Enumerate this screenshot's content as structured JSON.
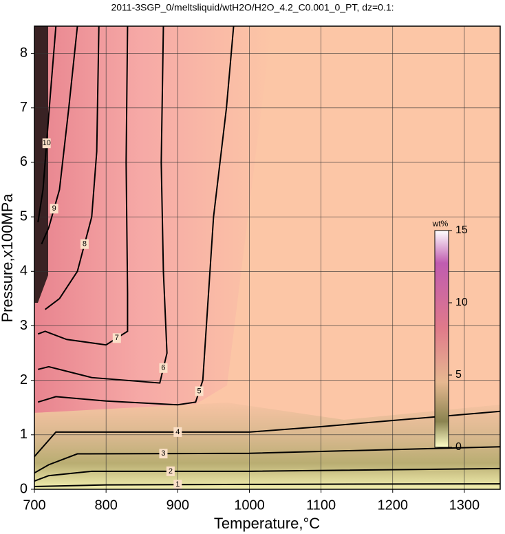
{
  "chart_data": {
    "type": "contour",
    "title": "2011-3SGP_0/meltsliquid/wtH2O/H2O_4.2_C0.001_0_PT, dz=0.1:",
    "x_label": "Temperature,°C",
    "y_label": "Pressure,x100MPa",
    "xlim": [
      700,
      1350
    ],
    "ylim": [
      0,
      8.5
    ],
    "xticks": [
      700,
      800,
      900,
      1000,
      1100,
      1200,
      1300
    ],
    "yticks": [
      0,
      1,
      2,
      3,
      4,
      5,
      6,
      7,
      8
    ],
    "grid": true,
    "colorbar": {
      "label": "wt%",
      "lim": [
        0,
        15
      ],
      "ticks": [
        0,
        5,
        10,
        15
      ]
    },
    "contours": [
      {
        "level": 1,
        "x": [
          700,
          800,
          1000,
          1350
        ],
        "y": [
          0.05,
          0.08,
          0.09,
          0.1
        ]
      },
      {
        "level": 2,
        "x": [
          700,
          720,
          780,
          1000,
          1350
        ],
        "y": [
          0.15,
          0.25,
          0.33,
          0.33,
          0.38
        ]
      },
      {
        "level": 3,
        "x": [
          700,
          720,
          760,
          1000,
          1350
        ],
        "y": [
          0.3,
          0.45,
          0.65,
          0.66,
          0.78
        ]
      },
      {
        "level": 4,
        "x": [
          700,
          730,
          800,
          1000,
          1100,
          1350
        ],
        "y": [
          0.6,
          1.05,
          1.05,
          1.05,
          1.15,
          1.43
        ]
      },
      {
        "level": 5,
        "x": [
          978,
          968,
          950,
          940,
          935,
          925,
          900,
          800,
          730,
          705
        ],
        "y": [
          8.5,
          7,
          5,
          3,
          2,
          1.6,
          1.55,
          1.62,
          1.7,
          1.6
        ]
      },
      {
        "level": 6,
        "x": [
          880,
          877,
          880,
          885,
          875,
          780,
          720,
          705
        ],
        "y": [
          8.5,
          6,
          4,
          2.5,
          1.95,
          2.05,
          2.25,
          2.2
        ]
      },
      {
        "level": 7,
        "x": [
          830,
          828,
          830,
          830,
          800,
          745,
          715,
          705
        ],
        "y": [
          8.5,
          6,
          3.6,
          2.9,
          2.65,
          2.75,
          2.9,
          2.85
        ]
      },
      {
        "level": 8,
        "x": [
          790,
          787,
          780,
          760,
          735,
          715
        ],
        "y": [
          8.5,
          6.2,
          5,
          4,
          3.5,
          3.3
        ]
      },
      {
        "level": 9,
        "x": [
          760,
          748,
          735,
          720,
          710
        ],
        "y": [
          8.5,
          7,
          5.5,
          4.8,
          4.5
        ]
      },
      {
        "level": 10,
        "x": [
          730,
          722,
          712,
          705
        ],
        "y": [
          8.5,
          7.2,
          5.5,
          4.9
        ]
      }
    ]
  }
}
